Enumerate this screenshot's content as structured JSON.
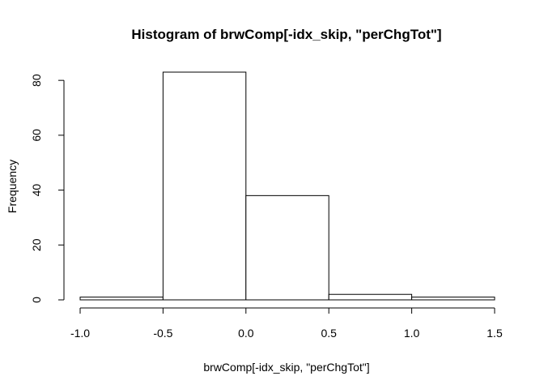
{
  "chart_data": {
    "type": "bar",
    "title": "Histogram of brwComp[-idx_skip, \"perChgTot\"]",
    "xlabel": "brwComp[-idx_skip, \"perChgTot\"]",
    "ylabel": "Frequency",
    "xlim": [
      -1.0,
      1.5
    ],
    "ylim": [
      0,
      83
    ],
    "x_ticks": [
      -1.0,
      -0.5,
      0.0,
      0.5,
      1.0,
      1.5
    ],
    "x_tick_labels": [
      "-1.0",
      "-0.5",
      "0.0",
      "0.5",
      "1.0",
      "1.5"
    ],
    "y_ticks": [
      0,
      20,
      40,
      60,
      80
    ],
    "y_tick_labels": [
      "0",
      "20",
      "40",
      "60",
      "80"
    ],
    "bins": [
      {
        "start": -1.0,
        "end": -0.5,
        "count": 1
      },
      {
        "start": -0.5,
        "end": 0.0,
        "count": 83
      },
      {
        "start": 0.0,
        "end": 0.5,
        "count": 38
      },
      {
        "start": 0.5,
        "end": 1.0,
        "count": 2
      },
      {
        "start": 1.0,
        "end": 1.5,
        "count": 1
      }
    ],
    "grid": false,
    "legend": "none",
    "colors": {
      "bar_fill": "#ffffff",
      "bar_stroke": "#000000"
    }
  }
}
